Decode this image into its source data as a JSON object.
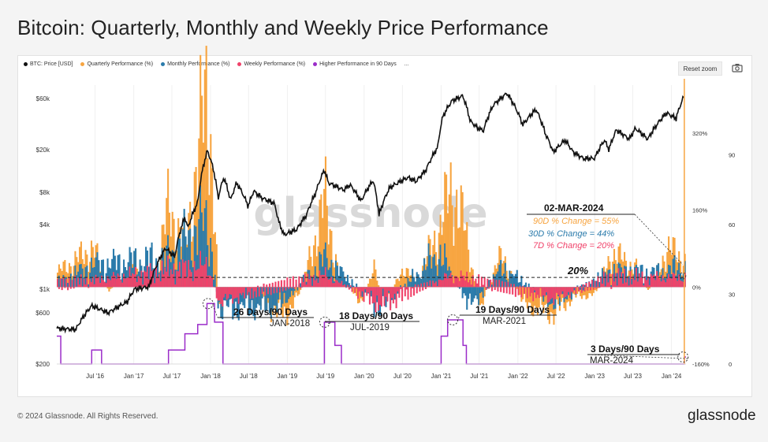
{
  "title": "Bitcoin: Quarterly, Monthly and Weekly Price Performance",
  "legend": {
    "items": [
      {
        "label": "BTC: Price [USD]",
        "color": "#111111"
      },
      {
        "label": "Quarterly Performance (%)",
        "color": "#f7a541"
      },
      {
        "label": "Monthly Performance (%)",
        "color": "#2b7bab"
      },
      {
        "label": "Weekly Performance (%)",
        "color": "#f0426a"
      },
      {
        "label": "Higher Performance in 90 Days",
        "color": "#9b2cc9"
      }
    ],
    "more": "..."
  },
  "reset_zoom": "Reset zoom",
  "camera_icon": "camera-icon",
  "watermark": "glassnode",
  "footer": {
    "copyright": "© 2024 Glassnode. All Rights Reserved.",
    "brand": "glassnode"
  },
  "chart_data": {
    "type": "line",
    "x_ticks": [
      "Jul '16",
      "Jan '17",
      "Jul '17",
      "Jan '18",
      "Jul '18",
      "Jan '19",
      "Jul '19",
      "Jan '20",
      "Jul '20",
      "Jan '21",
      "Jul '21",
      "Jan '22",
      "Jul '22",
      "Jan '23",
      "Jul '23",
      "Jan '24"
    ],
    "y_left": {
      "scale": "log",
      "ticks": [
        "$60k",
        "$20k",
        "$8k",
        "$4k",
        "$1k",
        "$600",
        "$200"
      ],
      "range": [
        200,
        80000
      ]
    },
    "y_right_pct": {
      "ticks": [
        "320%",
        "160%",
        "0%",
        "-160%"
      ],
      "range": [
        -160,
        420
      ]
    },
    "y_right_days": {
      "ticks": [
        "90",
        "60",
        "30",
        "0"
      ],
      "range": [
        0,
        120
      ]
    },
    "series": [
      {
        "name": "BTC: Price [USD]",
        "axis": "left",
        "color": "#111111",
        "points": [
          [
            "2016-01-01",
            430
          ],
          [
            "2016-04-01",
            420
          ],
          [
            "2016-06-15",
            700
          ],
          [
            "2016-09-01",
            600
          ],
          [
            "2016-12-01",
            760
          ],
          [
            "2017-01-05",
            1000
          ],
          [
            "2017-03-15",
            1050
          ],
          [
            "2017-06-01",
            2400
          ],
          [
            "2017-07-15",
            2000
          ],
          [
            "2017-09-01",
            4700
          ],
          [
            "2017-09-15",
            3700
          ],
          [
            "2017-11-01",
            6400
          ],
          [
            "2017-12-17",
            19500
          ],
          [
            "2018-01-15",
            13000
          ],
          [
            "2018-02-06",
            7000
          ],
          [
            "2018-03-05",
            11000
          ],
          [
            "2018-04-06",
            6700
          ],
          [
            "2018-05-05",
            9800
          ],
          [
            "2018-06-29",
            5900
          ],
          [
            "2018-07-25",
            8200
          ],
          [
            "2018-09-01",
            7100
          ],
          [
            "2018-10-31",
            6300
          ],
          [
            "2018-11-20",
            4300
          ],
          [
            "2018-12-15",
            3200
          ],
          [
            "2019-02-15",
            3600
          ],
          [
            "2019-04-02",
            4900
          ],
          [
            "2019-05-15",
            7800
          ],
          [
            "2019-06-26",
            12900
          ],
          [
            "2019-07-15",
            9800
          ],
          [
            "2019-09-25",
            8400
          ],
          [
            "2019-10-26",
            9400
          ],
          [
            "2019-12-17",
            6600
          ],
          [
            "2020-02-13",
            10300
          ],
          [
            "2020-03-12",
            4900
          ],
          [
            "2020-05-01",
            8800
          ],
          [
            "2020-07-27",
            11000
          ],
          [
            "2020-09-05",
            10100
          ],
          [
            "2020-10-21",
            12900
          ],
          [
            "2020-12-16",
            21000
          ],
          [
            "2021-01-08",
            40000
          ],
          [
            "2021-02-21",
            57000
          ],
          [
            "2021-04-14",
            63500
          ],
          [
            "2021-05-19",
            37000
          ],
          [
            "2021-06-22",
            32000
          ],
          [
            "2021-07-21",
            30000
          ],
          [
            "2021-09-06",
            52000
          ],
          [
            "2021-11-10",
            67000
          ],
          [
            "2022-01-24",
            34000
          ],
          [
            "2022-03-28",
            47500
          ],
          [
            "2022-05-12",
            28000
          ],
          [
            "2022-06-18",
            18900
          ],
          [
            "2022-08-13",
            24500
          ],
          [
            "2022-09-20",
            19000
          ],
          [
            "2022-11-09",
            16500
          ],
          [
            "2023-01-01",
            16600
          ],
          [
            "2023-02-16",
            24500
          ],
          [
            "2023-03-10",
            20000
          ],
          [
            "2023-04-14",
            30500
          ],
          [
            "2023-06-15",
            25000
          ],
          [
            "2023-07-13",
            31500
          ],
          [
            "2023-09-11",
            25000
          ],
          [
            "2023-10-25",
            34500
          ],
          [
            "2023-12-08",
            44000
          ],
          [
            "2024-01-23",
            39000
          ],
          [
            "2024-02-28",
            62000
          ],
          [
            "2024-03-02",
            62000
          ]
        ]
      },
      {
        "name": "Quarterly Performance (%)",
        "axis": "right_pct",
        "color": "#f7a541",
        "points": [
          [
            "2016-01-01",
            30
          ],
          [
            "2016-06-20",
            80
          ],
          [
            "2016-09-01",
            -10
          ],
          [
            "2017-01-05",
            60
          ],
          [
            "2017-04-01",
            10
          ],
          [
            "2017-06-10",
            160
          ],
          [
            "2017-09-01",
            90
          ],
          [
            "2017-12-17",
            420
          ],
          [
            "2018-02-06",
            -40
          ],
          [
            "2018-05-01",
            -20
          ],
          [
            "2018-08-01",
            -30
          ],
          [
            "2018-12-15",
            -60
          ],
          [
            "2019-03-01",
            -10
          ],
          [
            "2019-06-26",
            180
          ],
          [
            "2019-09-01",
            20
          ],
          [
            "2019-12-17",
            -30
          ],
          [
            "2020-02-13",
            40
          ],
          [
            "2020-04-01",
            -40
          ],
          [
            "2020-07-01",
            40
          ],
          [
            "2020-09-01",
            10
          ],
          [
            "2020-12-20",
            120
          ],
          [
            "2021-02-21",
            210
          ],
          [
            "2021-04-14",
            130
          ],
          [
            "2021-07-01",
            -40
          ],
          [
            "2021-10-15",
            70
          ],
          [
            "2022-01-24",
            -35
          ],
          [
            "2022-06-18",
            -55
          ],
          [
            "2022-09-20",
            -20
          ],
          [
            "2023-01-01",
            -15
          ],
          [
            "2023-03-20",
            70
          ],
          [
            "2023-07-13",
            40
          ],
          [
            "2023-09-11",
            -10
          ],
          [
            "2023-12-08",
            80
          ],
          [
            "2024-03-02",
            55
          ]
        ]
      },
      {
        "name": "Monthly Performance (%)",
        "axis": "right_pct",
        "color": "#2b7bab",
        "points": [
          [
            "2016-01-01",
            10
          ],
          [
            "2016-06-15",
            45
          ],
          [
            "2017-06-01",
            60
          ],
          [
            "2017-12-17",
            140
          ],
          [
            "2018-02-06",
            -45
          ],
          [
            "2018-11-20",
            -40
          ],
          [
            "2019-06-26",
            60
          ],
          [
            "2020-03-12",
            -45
          ],
          [
            "2020-12-20",
            70
          ],
          [
            "2021-05-19",
            -40
          ],
          [
            "2021-10-15",
            40
          ],
          [
            "2022-06-18",
            -35
          ],
          [
            "2023-03-20",
            35
          ],
          [
            "2023-10-25",
            30
          ],
          [
            "2024-03-02",
            44
          ]
        ]
      },
      {
        "name": "Weekly Performance (%)",
        "axis": "right_pct",
        "color": "#f0426a",
        "points": [
          [
            "2016-01-01",
            5
          ],
          [
            "2017-12-17",
            45
          ],
          [
            "2018-02-06",
            -30
          ],
          [
            "2019-06-26",
            25
          ],
          [
            "2020-03-12",
            -35
          ],
          [
            "2021-02-21",
            25
          ],
          [
            "2022-06-18",
            -25
          ],
          [
            "2023-03-20",
            20
          ],
          [
            "2024-03-02",
            20
          ]
        ]
      },
      {
        "name": "Higher Performance in 90 Days",
        "axis": "right_days",
        "color": "#9b2cc9",
        "points": [
          [
            "2016-01-01",
            12
          ],
          [
            "2016-01-20",
            0
          ],
          [
            "2016-06-01",
            0
          ],
          [
            "2016-06-15",
            6
          ],
          [
            "2016-08-01",
            0
          ],
          [
            "2017-06-01",
            0
          ],
          [
            "2017-06-15",
            6
          ],
          [
            "2017-09-01",
            13
          ],
          [
            "2017-11-01",
            17
          ],
          [
            "2017-12-15",
            26
          ],
          [
            "2018-01-20",
            18
          ],
          [
            "2018-03-01",
            0
          ],
          [
            "2019-06-15",
            0
          ],
          [
            "2019-06-26",
            18
          ],
          [
            "2019-08-15",
            8
          ],
          [
            "2019-09-15",
            0
          ],
          [
            "2020-12-15",
            0
          ],
          [
            "2021-01-01",
            12
          ],
          [
            "2021-02-01",
            19
          ],
          [
            "2021-03-01",
            19
          ],
          [
            "2021-04-15",
            8
          ],
          [
            "2021-05-01",
            0
          ],
          [
            "2024-03-02",
            3
          ]
        ]
      }
    ],
    "reference_line": {
      "label": "20%",
      "value_pct": 20
    },
    "annotations": [
      {
        "title": "26 Days/90 Days",
        "subtitle": "JAN-2018"
      },
      {
        "title": "18 Days/90 Days",
        "subtitle": "JUL-2019"
      },
      {
        "title": "19 Days/90 Days",
        "subtitle": "MAR-2021"
      },
      {
        "title": "3 Days/90 Days",
        "subtitle": "MAR-2024"
      }
    ],
    "callout": {
      "date": "02-MAR-2024",
      "q": "90D % Change = 55%",
      "m": "30D % Change = 44%",
      "w": "7D % Change = 20%"
    }
  }
}
